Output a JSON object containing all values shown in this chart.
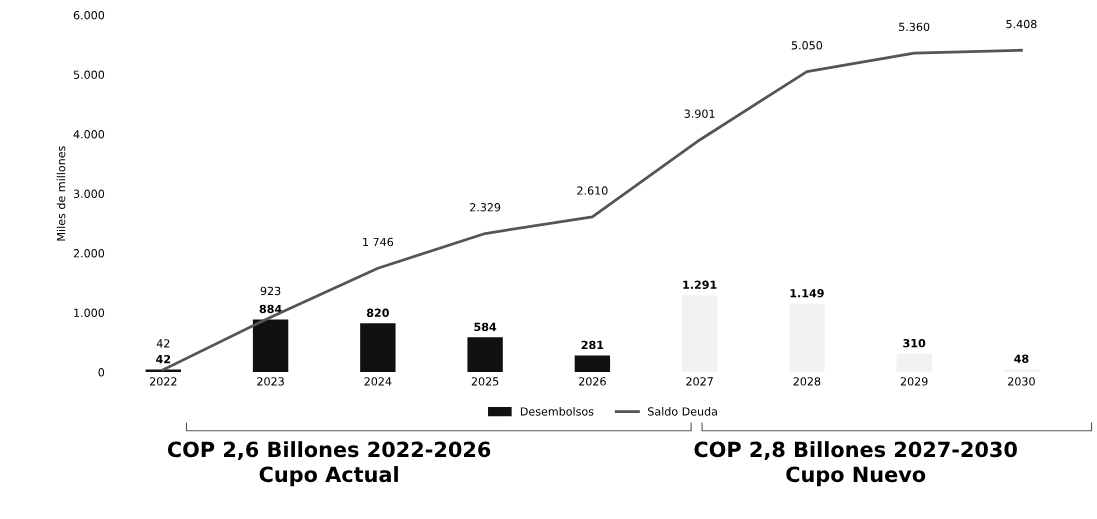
{
  "chart_data": {
    "type": "bar",
    "ylabel": "Miles de millones",
    "categories": [
      "2022",
      "2023",
      "2024",
      "2025",
      "2026",
      "2027",
      "2028",
      "2029",
      "2030"
    ],
    "ylim": [
      0,
      6000
    ],
    "yticks": [
      0,
      {
        "value": 1000,
        "label": "1.000"
      },
      {
        "value": 2000,
        "label": "2.000"
      },
      {
        "value": 3000,
        "label": "3.000"
      },
      {
        "value": 4000,
        "label": "4.000"
      },
      {
        "value": 5000,
        "label": "5.000"
      },
      {
        "value": 6000,
        "label": "6.000"
      }
    ],
    "series": [
      {
        "name": "Desembolsos",
        "color": "#111111",
        "colors": [
          "#111111",
          "#111111",
          "#111111",
          "#111111",
          "#111111",
          "#f2f2f2",
          "#f2f2f2",
          "#f2f2f2",
          "#f2f2f2"
        ],
        "values": [
          42,
          884,
          820,
          584,
          281,
          1291,
          1149,
          310,
          48
        ],
        "value_labels": [
          "42",
          "884",
          "820",
          "584",
          "281",
          "1.291",
          "1.149",
          "310",
          "48"
        ]
      },
      {
        "name": "Saldo Deuda",
        "type": "line",
        "color": "#555555",
        "values": [
          42,
          923,
          1746,
          2329,
          2610,
          3901,
          5050,
          5360,
          5408
        ],
        "value_labels": [
          "42",
          "923",
          "1 746",
          "2.329",
          "2.610",
          "3.901",
          "5.050",
          "5.360",
          "5.408"
        ]
      }
    ],
    "legend": "bottom",
    "grid": false,
    "marker": "none",
    "line_style": "solid",
    "annotations": [
      "COP 2,6 Billones 2022-2026\nCupo Actual",
      "COP 2,8 Billones 2027-2030\nCupo Nuevo"
    ]
  }
}
